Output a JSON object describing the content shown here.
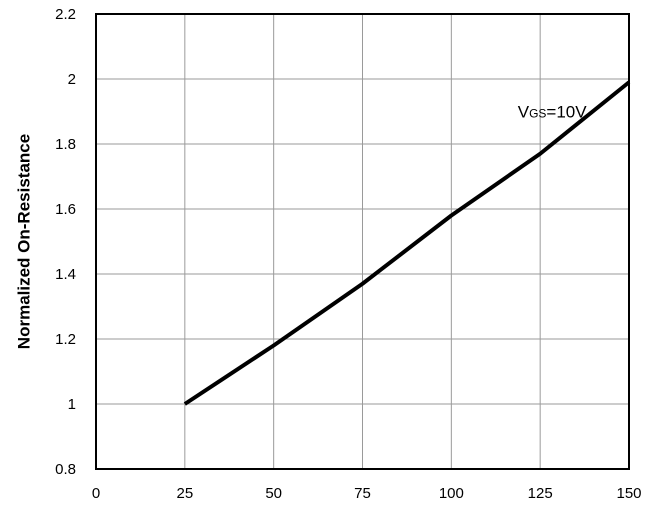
{
  "chart_data": {
    "type": "line",
    "title": "",
    "xlabel": "",
    "ylabel": "Normalized On-Resistance",
    "xlim": [
      0,
      150
    ],
    "ylim": [
      0.8,
      2.2
    ],
    "x_ticks": [
      0,
      25,
      50,
      75,
      100,
      125,
      150
    ],
    "y_ticks": [
      0.8,
      1,
      1.2,
      1.4,
      1.6,
      1.8,
      2,
      2.2
    ],
    "x_tick_labels": [
      "0",
      "25",
      "50",
      "75",
      "100",
      "125",
      "150"
    ],
    "y_tick_labels": [
      "0.8",
      "1",
      "1.2",
      "1.4",
      "1.6",
      "1.8",
      "2",
      "2.2"
    ],
    "grid": true,
    "legend": "none",
    "series": [
      {
        "x": [
          25,
          50,
          75,
          100,
          125,
          150
        ],
        "y": [
          1.0,
          1.18,
          1.37,
          1.58,
          1.77,
          1.99
        ],
        "color": "#000000"
      }
    ],
    "annotations": [
      {
        "main": "V",
        "sub": "GS",
        "rest": "=10V",
        "x": 117,
        "y": 1.9
      }
    ]
  }
}
